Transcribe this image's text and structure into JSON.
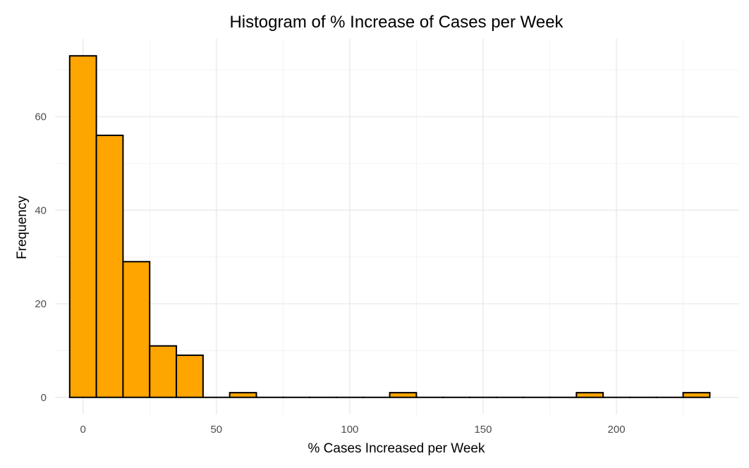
{
  "chart_data": {
    "type": "bar",
    "subtype": "histogram",
    "title": "Histogram of % Increase of Cases per Week",
    "xlabel": "% Cases Increased per Week",
    "ylabel": "Frequency",
    "bin_width": 10,
    "bins": [
      {
        "x_start": -5,
        "x_end": 5,
        "count": 73
      },
      {
        "x_start": 5,
        "x_end": 15,
        "count": 56
      },
      {
        "x_start": 15,
        "x_end": 25,
        "count": 29
      },
      {
        "x_start": 25,
        "x_end": 35,
        "count": 11
      },
      {
        "x_start": 35,
        "x_end": 45,
        "count": 9
      },
      {
        "x_start": 45,
        "x_end": 55,
        "count": 0
      },
      {
        "x_start": 55,
        "x_end": 65,
        "count": 1
      },
      {
        "x_start": 65,
        "x_end": 75,
        "count": 0
      },
      {
        "x_start": 75,
        "x_end": 85,
        "count": 0
      },
      {
        "x_start": 85,
        "x_end": 95,
        "count": 0
      },
      {
        "x_start": 95,
        "x_end": 105,
        "count": 0
      },
      {
        "x_start": 105,
        "x_end": 115,
        "count": 0
      },
      {
        "x_start": 115,
        "x_end": 125,
        "count": 1
      },
      {
        "x_start": 125,
        "x_end": 135,
        "count": 0
      },
      {
        "x_start": 135,
        "x_end": 145,
        "count": 0
      },
      {
        "x_start": 145,
        "x_end": 155,
        "count": 0
      },
      {
        "x_start": 155,
        "x_end": 165,
        "count": 0
      },
      {
        "x_start": 165,
        "x_end": 175,
        "count": 0
      },
      {
        "x_start": 175,
        "x_end": 185,
        "count": 0
      },
      {
        "x_start": 185,
        "x_end": 195,
        "count": 1
      },
      {
        "x_start": 195,
        "x_end": 205,
        "count": 0
      },
      {
        "x_start": 205,
        "x_end": 215,
        "count": 0
      },
      {
        "x_start": 215,
        "x_end": 225,
        "count": 0
      },
      {
        "x_start": 225,
        "x_end": 235,
        "count": 1
      }
    ],
    "xlim": [
      -10.5,
      246
    ],
    "ylim": [
      -3.65,
      76.65
    ],
    "x_ticks": [
      0,
      50,
      100,
      150,
      200
    ],
    "y_ticks": [
      0,
      20,
      40,
      60
    ],
    "x_minor_gridlines": [
      25,
      75,
      125,
      175,
      225
    ],
    "y_minor_gridlines": [
      10,
      30,
      50,
      70
    ],
    "grid": true,
    "legend": "none",
    "colors": {
      "bar_fill": "#FFA500",
      "bar_outline": "#000000",
      "grid_major": "#EBEBEB",
      "grid_minor": "#F3F3F3",
      "background": "#FFFFFF"
    }
  }
}
